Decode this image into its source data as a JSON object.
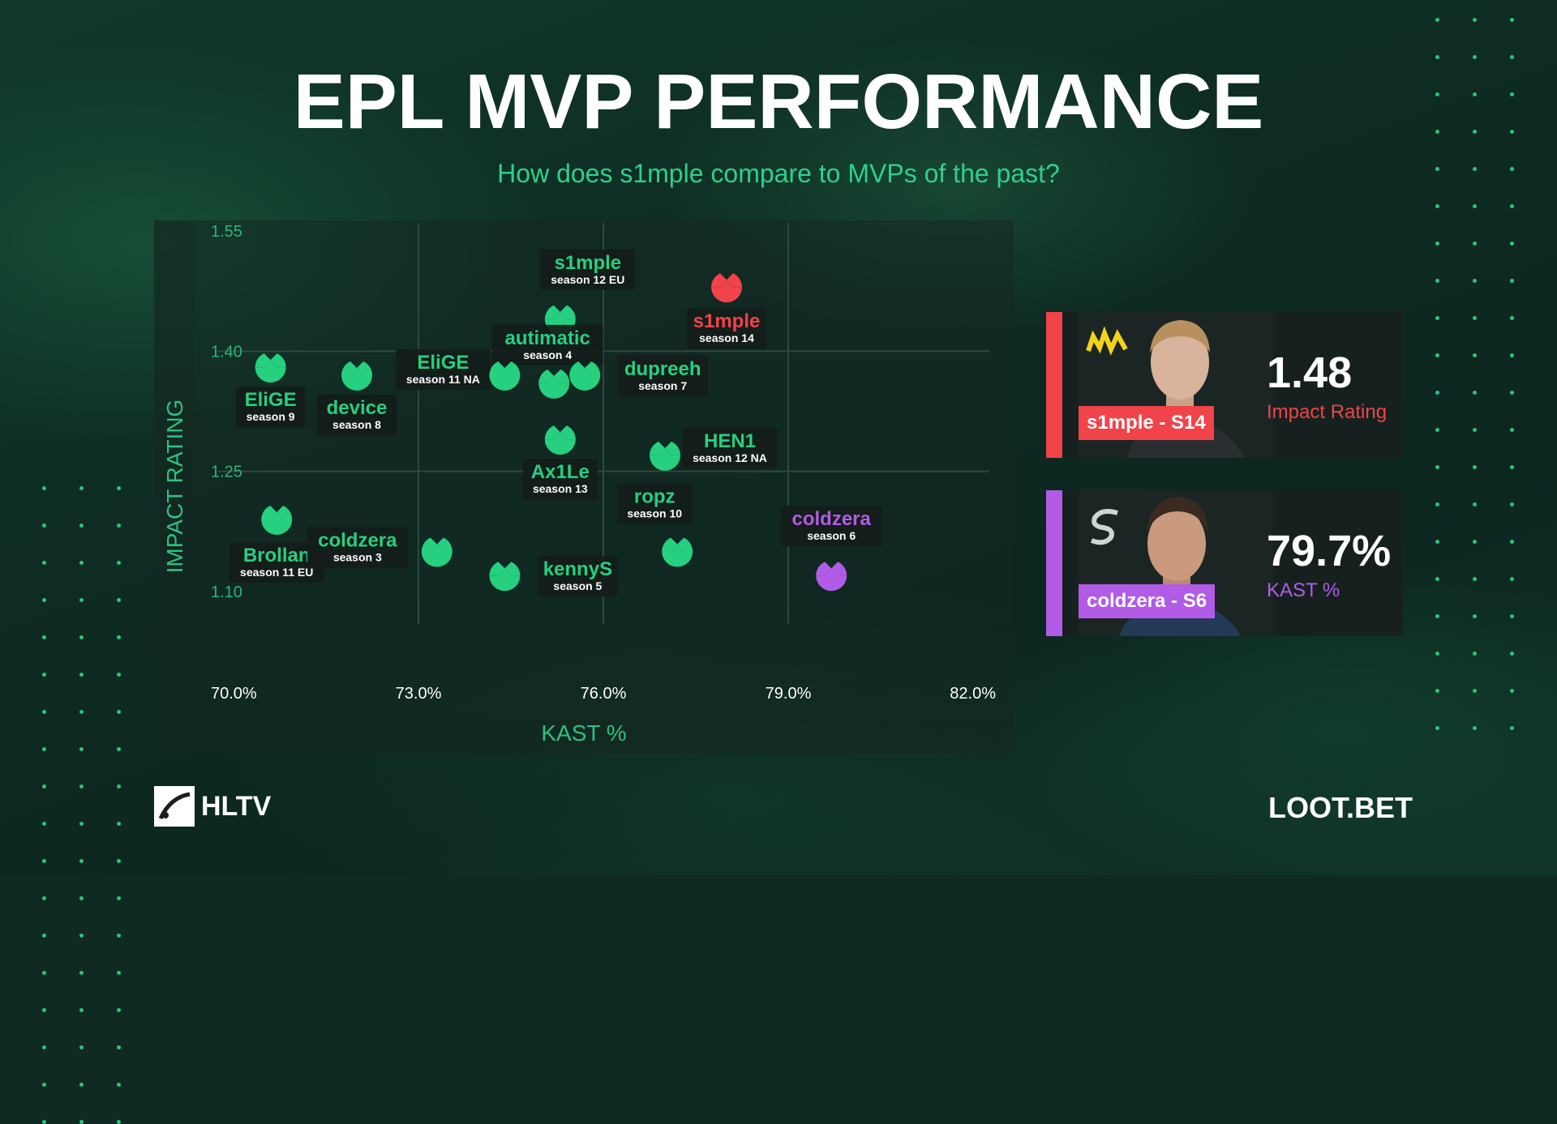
{
  "header": {
    "title": "EPL MVP PERFORMANCE",
    "subtitle": "How does s1mple compare to MVPs of the past?"
  },
  "colors": {
    "green": "#26d07f",
    "red": "#f0434a",
    "purple": "#b25be6",
    "label_bg": "#141c1a"
  },
  "chart_data": {
    "type": "scatter",
    "xlabel": "KAST %",
    "ylabel": "IMPACT RATING",
    "xlim": [
      70.0,
      82.0
    ],
    "ylim": [
      1.1,
      1.55
    ],
    "x_ticks": [
      "70.0%",
      "73.0%",
      "76.0%",
      "79.0%",
      "82.0%"
    ],
    "x_tick_values": [
      70.0,
      73.0,
      76.0,
      79.0,
      82.0
    ],
    "y_ticks": [
      "1.55",
      "1.40",
      "1.25",
      "1.10"
    ],
    "y_tick_values": [
      1.55,
      1.4,
      1.25,
      1.1
    ],
    "grid": true,
    "points": [
      {
        "name": "s1mple",
        "season": "season 12 EU",
        "x": 75.3,
        "y": 1.44,
        "color": "green"
      },
      {
        "name": "s1mple",
        "season": "season 14",
        "x": 78.0,
        "y": 1.48,
        "color": "red"
      },
      {
        "name": "autimatic",
        "season": "season 4",
        "x": 75.2,
        "y": 1.36,
        "color": "green"
      },
      {
        "name": "EliGE",
        "season": "season 11 NA",
        "x": 74.4,
        "y": 1.37,
        "color": "green"
      },
      {
        "name": "dupreeh",
        "season": "season 7",
        "x": 75.7,
        "y": 1.37,
        "color": "green"
      },
      {
        "name": "EliGE",
        "season": "season 9",
        "x": 70.6,
        "y": 1.38,
        "color": "green"
      },
      {
        "name": "device",
        "season": "season 8",
        "x": 72.0,
        "y": 1.37,
        "color": "green"
      },
      {
        "name": "Ax1Le",
        "season": "season 13",
        "x": 75.3,
        "y": 1.29,
        "color": "green"
      },
      {
        "name": "HEN1",
        "season": "season 12 NA",
        "x": 77.0,
        "y": 1.27,
        "color": "green"
      },
      {
        "name": "Brollan",
        "season": "season 11 EU",
        "x": 70.7,
        "y": 1.19,
        "color": "green"
      },
      {
        "name": "coldzera",
        "season": "season 3",
        "x": 73.3,
        "y": 1.15,
        "color": "green"
      },
      {
        "name": "kennyS",
        "season": "season 5",
        "x": 74.4,
        "y": 1.12,
        "color": "green"
      },
      {
        "name": "ropz",
        "season": "season 10",
        "x": 77.2,
        "y": 1.15,
        "color": "green"
      },
      {
        "name": "coldzera",
        "season": "season 6",
        "x": 79.7,
        "y": 1.12,
        "color": "purple"
      }
    ]
  },
  "cards": [
    {
      "value": "1.48",
      "label": "Impact Rating",
      "tag": "s1mple -  S14",
      "team": "NAVI",
      "color": "#f0434a"
    },
    {
      "value": "79.7%",
      "label": "KAST %",
      "tag": "coldzera - S6",
      "team": "SK",
      "color": "#b25be6"
    }
  ],
  "footer": {
    "left_logo": "HLTV",
    "right_logo": "LOOT.BET"
  }
}
